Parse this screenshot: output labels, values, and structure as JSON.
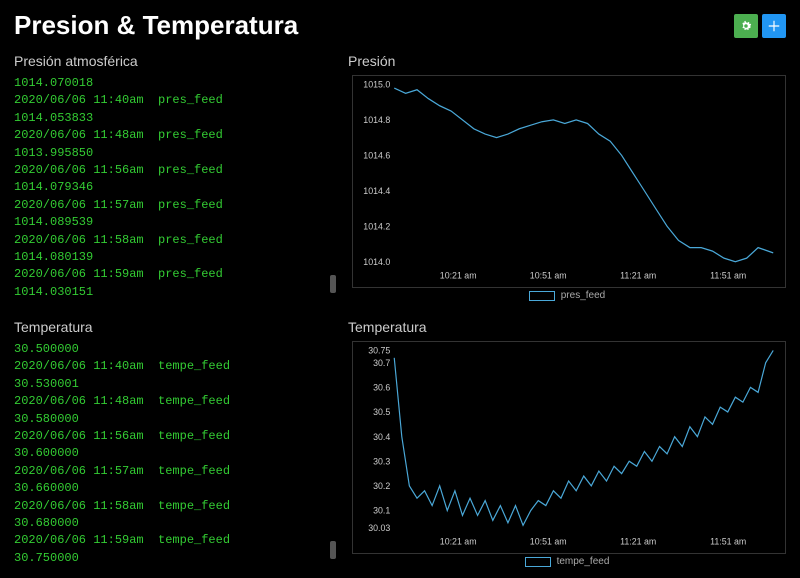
{
  "header": {
    "title": "Presion & Temperatura",
    "gear_color": "#4caf50",
    "plus_color": "#2196f3"
  },
  "colors": {
    "background": "#000000",
    "text": "#ffffff",
    "panel_title": "#cccccc",
    "feed_text": "#33cc33",
    "chart_line": "#4aa8d8",
    "chart_border": "#333333",
    "axis_text": "#cccccc",
    "scroll_thumb": "#555555"
  },
  "feeds": {
    "pressure": {
      "title": "Presión atmosférica",
      "overflow_top": "1014.070018",
      "entries": [
        {
          "ts": "2020/06/06 11:40am",
          "feed": "pres_feed",
          "val": "1014.053833"
        },
        {
          "ts": "2020/06/06 11:48am",
          "feed": "pres_feed",
          "val": "1013.995850"
        },
        {
          "ts": "2020/06/06 11:56am",
          "feed": "pres_feed",
          "val": "1014.079346"
        },
        {
          "ts": "2020/06/06 11:57am",
          "feed": "pres_feed",
          "val": "1014.089539"
        },
        {
          "ts": "2020/06/06 11:58am",
          "feed": "pres_feed",
          "val": "1014.080139"
        },
        {
          "ts": "2020/06/06 11:59am",
          "feed": "pres_feed",
          "val": "1014.030151"
        }
      ]
    },
    "temperature": {
      "title": "Temperatura",
      "overflow_top": "30.500000",
      "entries": [
        {
          "ts": "2020/06/06 11:40am",
          "feed": "tempe_feed",
          "val": "30.530001"
        },
        {
          "ts": "2020/06/06 11:48am",
          "feed": "tempe_feed",
          "val": "30.580000"
        },
        {
          "ts": "2020/06/06 11:56am",
          "feed": "tempe_feed",
          "val": "30.600000"
        },
        {
          "ts": "2020/06/06 11:57am",
          "feed": "tempe_feed",
          "val": "30.660000"
        },
        {
          "ts": "2020/06/06 11:58am",
          "feed": "tempe_feed",
          "val": "30.680000"
        },
        {
          "ts": "2020/06/06 11:59am",
          "feed": "tempe_feed",
          "val": "30.750000"
        }
      ]
    }
  },
  "charts": {
    "pressure": {
      "type": "line",
      "title": "Presión",
      "legend": "pres_feed",
      "line_color": "#4aa8d8",
      "background_color": "#000000",
      "ylim": [
        1014.0,
        1015.0
      ],
      "yticks": [
        1014.0,
        1014.2,
        1014.4,
        1014.6,
        1014.8,
        1015.0
      ],
      "xticks": [
        "10:21 am",
        "10:51 am",
        "11:21 am",
        "11:51 am"
      ],
      "data": [
        [
          0.0,
          1014.98
        ],
        [
          0.03,
          1014.95
        ],
        [
          0.06,
          1014.97
        ],
        [
          0.09,
          1014.92
        ],
        [
          0.12,
          1014.88
        ],
        [
          0.15,
          1014.85
        ],
        [
          0.18,
          1014.8
        ],
        [
          0.21,
          1014.75
        ],
        [
          0.24,
          1014.72
        ],
        [
          0.27,
          1014.7
        ],
        [
          0.3,
          1014.72
        ],
        [
          0.33,
          1014.75
        ],
        [
          0.36,
          1014.77
        ],
        [
          0.39,
          1014.79
        ],
        [
          0.42,
          1014.8
        ],
        [
          0.45,
          1014.78
        ],
        [
          0.48,
          1014.8
        ],
        [
          0.51,
          1014.78
        ],
        [
          0.54,
          1014.72
        ],
        [
          0.57,
          1014.68
        ],
        [
          0.6,
          1014.6
        ],
        [
          0.63,
          1014.5
        ],
        [
          0.66,
          1014.4
        ],
        [
          0.69,
          1014.3
        ],
        [
          0.72,
          1014.2
        ],
        [
          0.75,
          1014.12
        ],
        [
          0.78,
          1014.08
        ],
        [
          0.81,
          1014.08
        ],
        [
          0.84,
          1014.06
        ],
        [
          0.87,
          1014.02
        ],
        [
          0.9,
          1014.0
        ],
        [
          0.93,
          1014.02
        ],
        [
          0.96,
          1014.08
        ],
        [
          1.0,
          1014.05
        ]
      ]
    },
    "temperature": {
      "type": "line",
      "title": "Temperatura",
      "legend": "tempe_feed",
      "line_color": "#4aa8d8",
      "background_color": "#000000",
      "ylim": [
        30.03,
        30.75
      ],
      "yticks": [
        30.03,
        30.1,
        30.2,
        30.3,
        30.4,
        30.5,
        30.6,
        30.7,
        30.75
      ],
      "xticks": [
        "10:21 am",
        "10:51 am",
        "11:21 am",
        "11:51 am"
      ],
      "data": [
        [
          0.0,
          30.72
        ],
        [
          0.02,
          30.4
        ],
        [
          0.04,
          30.2
        ],
        [
          0.06,
          30.15
        ],
        [
          0.08,
          30.18
        ],
        [
          0.1,
          30.12
        ],
        [
          0.12,
          30.2
        ],
        [
          0.14,
          30.1
        ],
        [
          0.16,
          30.18
        ],
        [
          0.18,
          30.08
        ],
        [
          0.2,
          30.15
        ],
        [
          0.22,
          30.08
        ],
        [
          0.24,
          30.14
        ],
        [
          0.26,
          30.06
        ],
        [
          0.28,
          30.12
        ],
        [
          0.3,
          30.05
        ],
        [
          0.32,
          30.12
        ],
        [
          0.34,
          30.04
        ],
        [
          0.36,
          30.1
        ],
        [
          0.38,
          30.14
        ],
        [
          0.4,
          30.12
        ],
        [
          0.42,
          30.18
        ],
        [
          0.44,
          30.15
        ],
        [
          0.46,
          30.22
        ],
        [
          0.48,
          30.18
        ],
        [
          0.5,
          30.24
        ],
        [
          0.52,
          30.2
        ],
        [
          0.54,
          30.26
        ],
        [
          0.56,
          30.22
        ],
        [
          0.58,
          30.28
        ],
        [
          0.6,
          30.25
        ],
        [
          0.62,
          30.3
        ],
        [
          0.64,
          30.28
        ],
        [
          0.66,
          30.34
        ],
        [
          0.68,
          30.3
        ],
        [
          0.7,
          30.36
        ],
        [
          0.72,
          30.33
        ],
        [
          0.74,
          30.4
        ],
        [
          0.76,
          30.36
        ],
        [
          0.78,
          30.44
        ],
        [
          0.8,
          30.4
        ],
        [
          0.82,
          30.48
        ],
        [
          0.84,
          30.45
        ],
        [
          0.86,
          30.52
        ],
        [
          0.88,
          30.5
        ],
        [
          0.9,
          30.56
        ],
        [
          0.92,
          30.54
        ],
        [
          0.94,
          30.6
        ],
        [
          0.96,
          30.58
        ],
        [
          0.98,
          30.7
        ],
        [
          1.0,
          30.75
        ]
      ]
    }
  }
}
